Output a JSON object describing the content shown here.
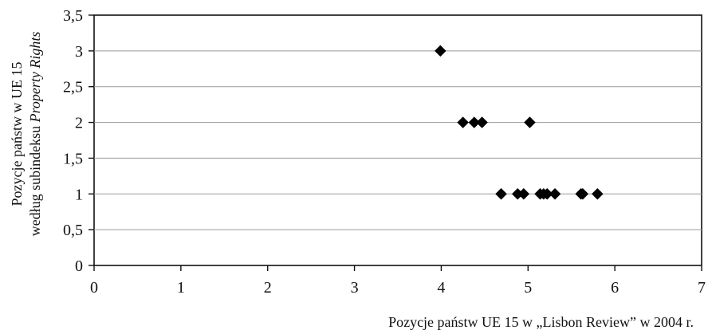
{
  "chart_data": {
    "type": "scatter",
    "title": "",
    "xlabel": "Pozycje państw UE 15 w „Lisbon Review” w 2004 r.",
    "ylabel_line1": "Pozycje państw w UE 15",
    "ylabel_line2_prefix": "według subindeksu ",
    "ylabel_line2_italic": "Property Rights",
    "xlim": [
      0,
      7
    ],
    "ylim": [
      0,
      3.5
    ],
    "x_ticks": [
      {
        "value": 0,
        "label": "0"
      },
      {
        "value": 1,
        "label": "1"
      },
      {
        "value": 2,
        "label": "2"
      },
      {
        "value": 3,
        "label": "3"
      },
      {
        "value": 4,
        "label": "4"
      },
      {
        "value": 5,
        "label": "5"
      },
      {
        "value": 6,
        "label": "6"
      },
      {
        "value": 7,
        "label": "7"
      }
    ],
    "y_ticks": [
      {
        "value": 0,
        "label": "0"
      },
      {
        "value": 0.5,
        "label": "0,5"
      },
      {
        "value": 1,
        "label": "1"
      },
      {
        "value": 1.5,
        "label": "1,5"
      },
      {
        "value": 2,
        "label": "2"
      },
      {
        "value": 2.5,
        "label": "2,5"
      },
      {
        "value": 3,
        "label": "3"
      },
      {
        "value": 3.5,
        "label": "3,5"
      }
    ],
    "grid": "horizontal",
    "legend": "none",
    "marker": "diamond",
    "marker_color": "#000000",
    "points": [
      {
        "x": 3.99,
        "y": 3
      },
      {
        "x": 4.25,
        "y": 2
      },
      {
        "x": 4.38,
        "y": 2
      },
      {
        "x": 4.47,
        "y": 2
      },
      {
        "x": 5.02,
        "y": 2
      },
      {
        "x": 4.69,
        "y": 1
      },
      {
        "x": 4.88,
        "y": 1
      },
      {
        "x": 4.95,
        "y": 1
      },
      {
        "x": 5.14,
        "y": 1
      },
      {
        "x": 5.18,
        "y": 1
      },
      {
        "x": 5.22,
        "y": 1
      },
      {
        "x": 5.31,
        "y": 1
      },
      {
        "x": 5.61,
        "y": 1
      },
      {
        "x": 5.63,
        "y": 1
      },
      {
        "x": 5.8,
        "y": 1
      }
    ]
  }
}
